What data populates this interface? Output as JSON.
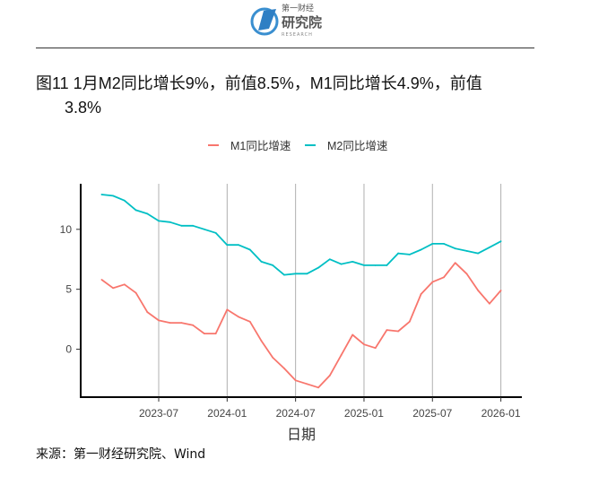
{
  "logo": {
    "line1": "第一财经",
    "line2": "研究院",
    "line3": "RESEARCH"
  },
  "title_line1": "图11 1月M2同比增长9%，前值8.5%，M1同比增长4.9%，前值",
  "title_line2": "3.8%",
  "source": "来源：第一财经研究院、Wind",
  "chart_data": {
    "type": "line",
    "xlabel": "日期",
    "ylabel": "",
    "ylim": [
      -4,
      13.8
    ],
    "yticks": [
      0,
      5,
      10
    ],
    "xticks": [
      "2023-07",
      "2024-01",
      "2024-07",
      "2025-01",
      "2025-07",
      "2026-01"
    ],
    "grid": "vertical major lines only",
    "legend": "top",
    "x": [
      "2023-02",
      "2023-03",
      "2023-04",
      "2023-05",
      "2023-06",
      "2023-07",
      "2023-08",
      "2023-09",
      "2023-10",
      "2023-11",
      "2023-12",
      "2024-01",
      "2024-02",
      "2024-03",
      "2024-04",
      "2024-05",
      "2024-06",
      "2024-07",
      "2024-08",
      "2024-09",
      "2024-10",
      "2024-11",
      "2024-12",
      "2025-01",
      "2025-02",
      "2025-03",
      "2025-04",
      "2025-05",
      "2025-06",
      "2025-07",
      "2025-08",
      "2025-09",
      "2025-10",
      "2025-11",
      "2025-12",
      "2026-01"
    ],
    "series": [
      {
        "name": "M1同比增速",
        "color": "#F8766D",
        "values": [
          5.8,
          5.1,
          5.4,
          4.7,
          3.1,
          2.4,
          2.2,
          2.2,
          2.0,
          1.3,
          1.3,
          3.3,
          2.7,
          2.3,
          0.7,
          -0.7,
          -1.6,
          -2.6,
          -2.9,
          -3.2,
          -2.2,
          -0.5,
          1.2,
          0.4,
          0.1,
          1.6,
          1.5,
          2.3,
          4.6,
          5.6,
          6.0,
          7.2,
          6.3,
          4.9,
          3.8,
          4.9
        ]
      },
      {
        "name": "M2同比增速",
        "color": "#00BFC4",
        "values": [
          12.9,
          12.8,
          12.4,
          11.6,
          11.3,
          10.7,
          10.6,
          10.3,
          10.3,
          10.0,
          9.7,
          8.7,
          8.7,
          8.3,
          7.3,
          7.0,
          6.2,
          6.3,
          6.3,
          6.8,
          7.5,
          7.1,
          7.3,
          7.0,
          7.0,
          7.0,
          8.0,
          7.9,
          8.3,
          8.8,
          8.8,
          8.4,
          8.2,
          8.0,
          8.5,
          9.0
        ]
      }
    ]
  }
}
